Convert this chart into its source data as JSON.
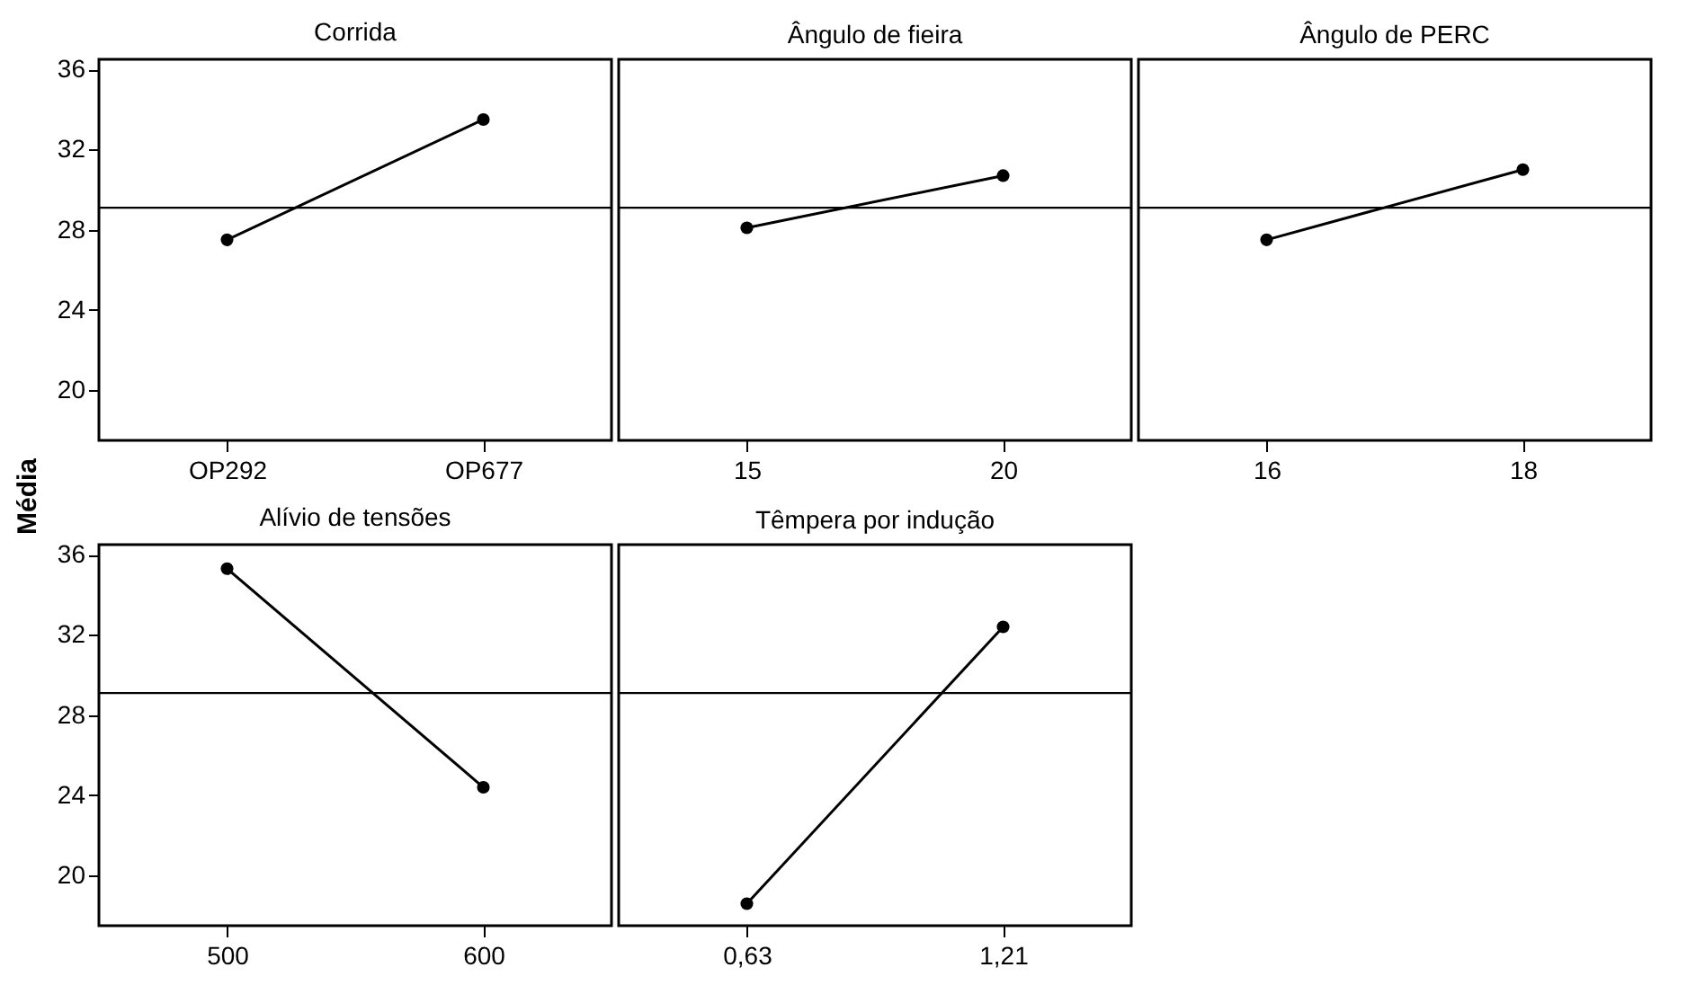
{
  "chart_data": [
    {
      "type": "line",
      "title": "Corrida",
      "ylabel": "Média",
      "categories": [
        "OP292",
        "OP677"
      ],
      "values": [
        27.5,
        33.5
      ],
      "color": "#000000",
      "ylim": [
        17.5,
        36.5
      ],
      "yticks": [
        20,
        24,
        28,
        32,
        36
      ],
      "marker": "circle",
      "line_style": "solid",
      "grid": false,
      "ref_lines": [
        {
          "axis": "y",
          "value": 29.1
        }
      ]
    },
    {
      "type": "line",
      "title": "Ângulo de fieira",
      "categories": [
        "15",
        "20"
      ],
      "values": [
        28.1,
        30.7
      ],
      "color": "#000000",
      "ylim": [
        17.5,
        36.5
      ],
      "yticks": [
        20,
        24,
        28,
        32,
        36
      ],
      "tick_labels": "x",
      "marker": "circle",
      "line_style": "solid",
      "grid": false,
      "ref_lines": [
        {
          "axis": "y",
          "value": 29.1
        }
      ]
    },
    {
      "type": "line",
      "title": "Ângulo de PERC",
      "categories": [
        "16",
        "18"
      ],
      "values": [
        27.5,
        31.0
      ],
      "color": "#000000",
      "ylim": [
        17.5,
        36.5
      ],
      "yticks": [
        20,
        24,
        28,
        32,
        36
      ],
      "tick_labels": "x",
      "marker": "circle",
      "line_style": "solid",
      "grid": false,
      "ref_lines": [
        {
          "axis": "y",
          "value": 29.1
        }
      ]
    },
    {
      "type": "line",
      "title": "Alívio de tensões",
      "categories": [
        "500",
        "600"
      ],
      "values": [
        35.3,
        24.4
      ],
      "color": "#000000",
      "ylim": [
        17.5,
        36.5
      ],
      "yticks": [
        20,
        24,
        28,
        32,
        36
      ],
      "marker": "circle",
      "line_style": "solid",
      "grid": false,
      "ref_lines": [
        {
          "axis": "y",
          "value": 29.1
        }
      ]
    },
    {
      "type": "line",
      "title": "Têmpera por indução",
      "categories": [
        "0,63",
        "1,21"
      ],
      "values": [
        18.6,
        32.4
      ],
      "color": "#000000",
      "ylim": [
        17.5,
        36.5
      ],
      "yticks": [
        20,
        24,
        28,
        32,
        36
      ],
      "tick_labels": "x",
      "marker": "circle",
      "line_style": "solid",
      "grid": false,
      "ref_lines": [
        {
          "axis": "y",
          "value": 29.1
        }
      ]
    }
  ]
}
